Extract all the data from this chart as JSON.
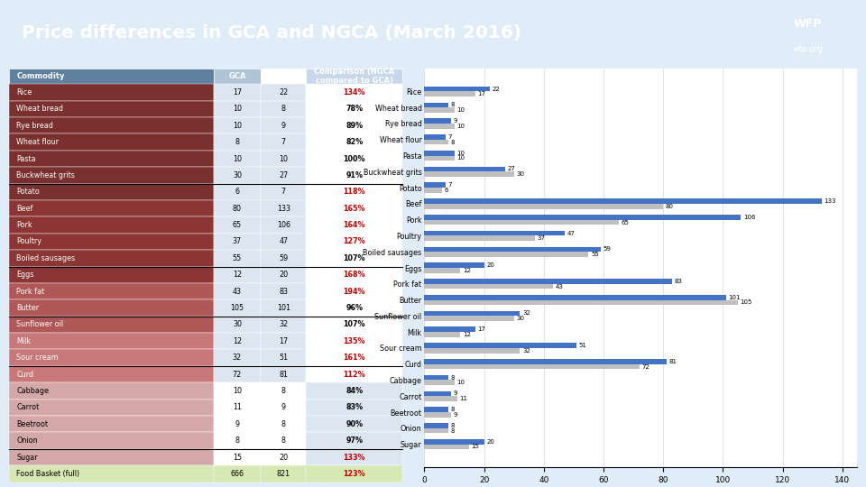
{
  "title": "Price differences in GCA and NGCA (March 2016)",
  "title_bg_color": "#5badd4",
  "title_text_color": "#ffffff",
  "commodities": [
    "Rice",
    "Wheat bread",
    "Rye bread",
    "Wheat flour",
    "Pasta",
    "Buckwheat grits",
    "Potato",
    "Beef",
    "Pork",
    "Poultry",
    "Boiled sausages",
    "Eggs",
    "Pork fat",
    "Butter",
    "Sunflower oil",
    "Milk",
    "Sour cream",
    "Curd",
    "Cabbage",
    "Carrot",
    "Beetroot",
    "Onion",
    "Sugar",
    "Food Basket (full)"
  ],
  "gca_values": [
    17,
    10,
    10,
    8,
    10,
    30,
    6,
    80,
    65,
    37,
    55,
    12,
    43,
    105,
    30,
    12,
    32,
    72,
    10,
    11,
    9,
    8,
    15,
    666
  ],
  "ngca_values": [
    22,
    8,
    9,
    7,
    10,
    27,
    7,
    133,
    106,
    47,
    59,
    20,
    83,
    101,
    32,
    17,
    51,
    81,
    8,
    9,
    8,
    8,
    20,
    821
  ],
  "comparison": [
    "134%",
    "78%",
    "89%",
    "82%",
    "100%",
    "91%",
    "118%",
    "165%",
    "164%",
    "127%",
    "107%",
    "168%",
    "194%",
    "96%",
    "107%",
    "135%",
    "161%",
    "112%",
    "84%",
    "83%",
    "90%",
    "97%",
    "133%",
    "123%"
  ],
  "comparison_colors": [
    "#c00000",
    "#000000",
    "#000000",
    "#000000",
    "#000000",
    "#000000",
    "#c00000",
    "#c00000",
    "#c00000",
    "#c00000",
    "#000000",
    "#c00000",
    "#c00000",
    "#000000",
    "#000000",
    "#c00000",
    "#c00000",
    "#c00000",
    "#000000",
    "#000000",
    "#000000",
    "#000000",
    "#c00000",
    "#c00000"
  ],
  "row_colors": {
    "grains": "#7b3030",
    "meats": "#8b3535",
    "fats": "#b05858",
    "dairy": "#c87878",
    "vegs_odd": "#dce6f1",
    "vegs_even": "#c8d8ea",
    "sugar": "#c8d8ea",
    "basket": "#d6e8b4"
  },
  "gca_col_bg": "#c8d8ea",
  "ngca_col_bg": "#ffffff",
  "header_commodity_bg": "#6080a0",
  "header_gca_bg": "#b0c4d8",
  "header_ngca_bg": "#ffffff",
  "header_comp_bg": "#c8d8ea",
  "bar_ngca_color": "#4472c4",
  "bar_gca_color": "#bfbfbf",
  "bar_chart_categories": [
    "Rice",
    "Wheat bread",
    "Rye bread",
    "Wheat flour",
    "Pasta",
    "Buckwheat grits",
    "Potato",
    "Beef",
    "Pork",
    "Poultry",
    "Boiled sausages",
    "Eggs",
    "Pork fat",
    "Butter",
    "Sunflower oil",
    "Milk",
    "Sour cream",
    "Curd",
    "Cabbage",
    "Carrot",
    "Beetroot",
    "Onion",
    "Sugar"
  ],
  "bar_gca": [
    17,
    10,
    10,
    8,
    10,
    30,
    6,
    80,
    65,
    37,
    55,
    12,
    43,
    105,
    30,
    12,
    32,
    72,
    10,
    11,
    9,
    8,
    15
  ],
  "bar_ngca": [
    22,
    8,
    9,
    7,
    10,
    27,
    7,
    133,
    106,
    47,
    59,
    20,
    83,
    101,
    32,
    17,
    51,
    81,
    8,
    9,
    8,
    8,
    20
  ],
  "xlim": [
    0,
    145
  ],
  "xticks": [
    0,
    20,
    40,
    60,
    80,
    100,
    120,
    140
  ],
  "bg_color": "#e0ecf8",
  "outer_bg": "#cde0f0"
}
